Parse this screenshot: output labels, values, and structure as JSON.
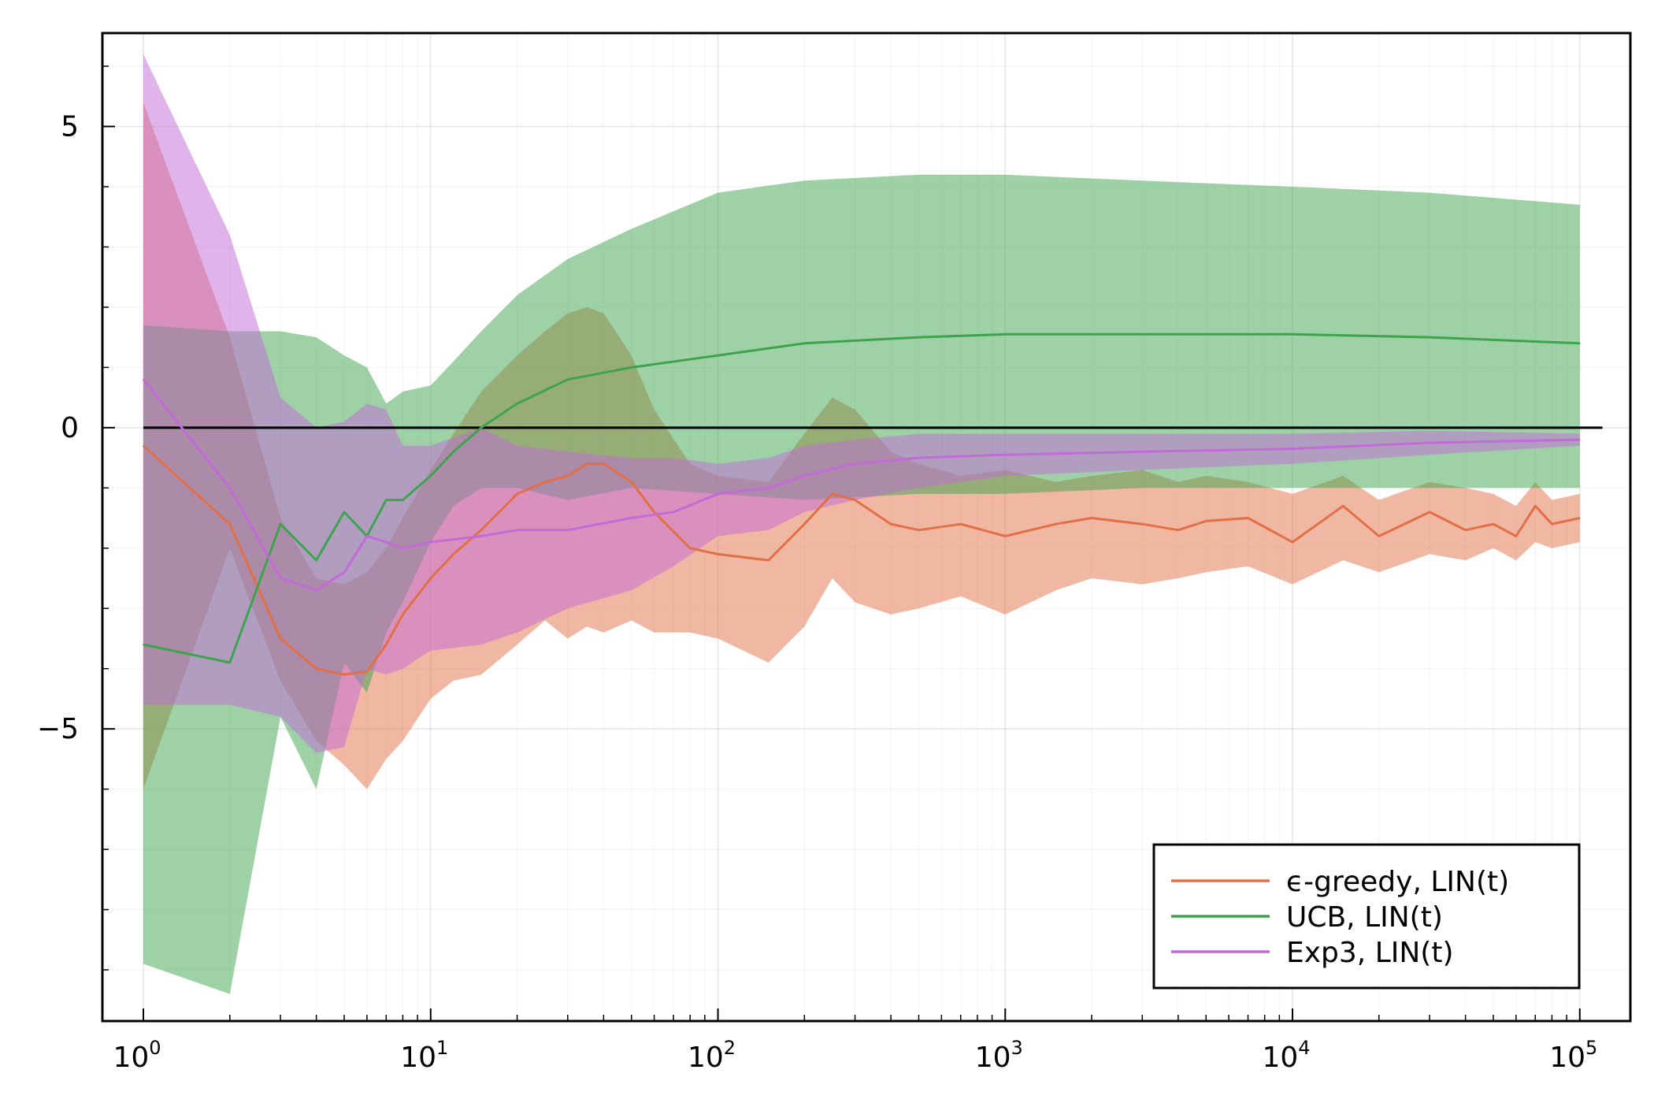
{
  "chart_data": {
    "type": "line",
    "title": "",
    "xlabel": "",
    "ylabel": "",
    "xscale": "log10",
    "xlim": [
      0.72,
      150000
    ],
    "ylim": [
      -9.85,
      6.55
    ],
    "x_ticks": [
      {
        "base": "10",
        "exp": "0",
        "value": 1
      },
      {
        "base": "10",
        "exp": "1",
        "value": 10
      },
      {
        "base": "10",
        "exp": "2",
        "value": 100
      },
      {
        "base": "10",
        "exp": "3",
        "value": 1000
      },
      {
        "base": "10",
        "exp": "4",
        "value": 10000
      },
      {
        "base": "10",
        "exp": "5",
        "value": 100000
      }
    ],
    "y_ticks": [
      {
        "label": "5",
        "value": 5
      },
      {
        "label": "0",
        "value": 0
      },
      {
        "label": "−5",
        "value": -5
      }
    ],
    "grid": true,
    "minor_grid": true,
    "legend_position": "bottom-right",
    "reference_line": {
      "y": 0,
      "x_range": [
        1,
        120000
      ],
      "color": "#000000"
    },
    "series": [
      {
        "name": "ϵ-greedy, LIN(t)",
        "color": "#e26f46",
        "band_opacity": 0.5,
        "points": [
          [
            1,
            -0.3,
            -6.0,
            5.4
          ],
          [
            2,
            -1.6,
            -2.0,
            1.5
          ],
          [
            3,
            -3.5,
            -4.2,
            -1.5
          ],
          [
            4,
            -4.0,
            -5.2,
            -2.5
          ],
          [
            5,
            -4.1,
            -5.6,
            -2.6
          ],
          [
            6,
            -4.05,
            -6.0,
            -2.4
          ],
          [
            7,
            -3.6,
            -5.5,
            -2.0
          ],
          [
            8,
            -3.1,
            -5.2,
            -1.5
          ],
          [
            10,
            -2.5,
            -4.5,
            -0.7
          ],
          [
            12,
            -2.1,
            -4.2,
            -0.1
          ],
          [
            15,
            -1.7,
            -4.1,
            0.6
          ],
          [
            20,
            -1.1,
            -3.6,
            1.2
          ],
          [
            25,
            -0.9,
            -3.2,
            1.6
          ],
          [
            30,
            -0.8,
            -3.5,
            1.9
          ],
          [
            35,
            -0.6,
            -3.3,
            2.0
          ],
          [
            40,
            -0.6,
            -3.4,
            1.9
          ],
          [
            50,
            -0.9,
            -3.2,
            1.2
          ],
          [
            60,
            -1.4,
            -3.4,
            0.3
          ],
          [
            80,
            -2.0,
            -3.4,
            -0.6
          ],
          [
            100,
            -2.1,
            -3.5,
            -0.8
          ],
          [
            150,
            -2.2,
            -3.9,
            -0.9
          ],
          [
            200,
            -1.6,
            -3.3,
            -0.1
          ],
          [
            250,
            -1.1,
            -2.5,
            0.5
          ],
          [
            300,
            -1.2,
            -2.9,
            0.3
          ],
          [
            400,
            -1.6,
            -3.1,
            -0.4
          ],
          [
            500,
            -1.7,
            -3.0,
            -0.6
          ],
          [
            700,
            -1.6,
            -2.8,
            -0.8
          ],
          [
            1000,
            -1.8,
            -3.1,
            -0.7
          ],
          [
            1500,
            -1.6,
            -2.7,
            -0.9
          ],
          [
            2000,
            -1.5,
            -2.5,
            -0.8
          ],
          [
            3000,
            -1.6,
            -2.6,
            -0.7
          ],
          [
            4000,
            -1.7,
            -2.5,
            -0.9
          ],
          [
            5000,
            -1.55,
            -2.4,
            -0.8
          ],
          [
            7000,
            -1.5,
            -2.3,
            -0.9
          ],
          [
            10000,
            -1.9,
            -2.6,
            -1.1
          ],
          [
            15000,
            -1.3,
            -2.2,
            -0.8
          ],
          [
            20000,
            -1.8,
            -2.4,
            -1.2
          ],
          [
            30000,
            -1.4,
            -2.1,
            -0.9
          ],
          [
            40000,
            -1.7,
            -2.2,
            -1.0
          ],
          [
            50000,
            -1.6,
            -2.0,
            -1.1
          ],
          [
            60000,
            -1.8,
            -2.2,
            -1.3
          ],
          [
            70000,
            -1.3,
            -1.9,
            -0.9
          ],
          [
            80000,
            -1.6,
            -2.0,
            -1.2
          ],
          [
            100000,
            -1.5,
            -1.9,
            -1.1
          ]
        ]
      },
      {
        "name": "UCB, LIN(t)",
        "color": "#3da44d",
        "band_opacity": 0.5,
        "points": [
          [
            1,
            -3.6,
            -8.9,
            1.7
          ],
          [
            2,
            -3.9,
            -9.4,
            1.6
          ],
          [
            3,
            -1.6,
            -4.8,
            1.6
          ],
          [
            4,
            -2.2,
            -6.0,
            1.5
          ],
          [
            5,
            -1.4,
            -3.9,
            1.2
          ],
          [
            6,
            -1.8,
            -4.4,
            1.0
          ],
          [
            7,
            -1.2,
            -3.4,
            0.4
          ],
          [
            8,
            -1.2,
            -2.9,
            0.6
          ],
          [
            10,
            -0.8,
            -1.9,
            0.7
          ],
          [
            12,
            -0.4,
            -1.3,
            1.1
          ],
          [
            15,
            0.0,
            -1.0,
            1.6
          ],
          [
            20,
            0.4,
            -1.0,
            2.2
          ],
          [
            30,
            0.8,
            -1.2,
            2.8
          ],
          [
            50,
            1.0,
            -1.0,
            3.3
          ],
          [
            100,
            1.2,
            -1.1,
            3.9
          ],
          [
            200,
            1.4,
            -1.2,
            4.1
          ],
          [
            500,
            1.5,
            -1.1,
            4.2
          ],
          [
            1000,
            1.55,
            -1.1,
            4.2
          ],
          [
            3000,
            1.55,
            -1.0,
            4.1
          ],
          [
            10000,
            1.55,
            -1.0,
            4.0
          ],
          [
            30000,
            1.5,
            -1.0,
            3.9
          ],
          [
            100000,
            1.4,
            -1.0,
            3.7
          ]
        ]
      },
      {
        "name": "Exp3, LIN(t)",
        "color": "#c26ad8",
        "band_opacity": 0.5,
        "points": [
          [
            1,
            0.8,
            -4.6,
            6.2
          ],
          [
            2,
            -1.0,
            -4.6,
            3.2
          ],
          [
            3,
            -2.5,
            -4.8,
            0.5
          ],
          [
            4,
            -2.7,
            -5.4,
            0.0
          ],
          [
            5,
            -2.4,
            -5.3,
            0.1
          ],
          [
            6,
            -1.8,
            -4.0,
            0.4
          ],
          [
            7,
            -1.9,
            -4.1,
            0.3
          ],
          [
            8,
            -2.0,
            -4.0,
            -0.3
          ],
          [
            10,
            -1.9,
            -3.7,
            -0.3
          ],
          [
            15,
            -1.8,
            -3.6,
            0.0
          ],
          [
            20,
            -1.7,
            -3.4,
            -0.3
          ],
          [
            30,
            -1.7,
            -3.0,
            -0.4
          ],
          [
            50,
            -1.5,
            -2.7,
            -0.5
          ],
          [
            70,
            -1.4,
            -2.3,
            -0.5
          ],
          [
            100,
            -1.1,
            -1.8,
            -0.6
          ],
          [
            150,
            -1.0,
            -1.7,
            -0.5
          ],
          [
            200,
            -0.8,
            -1.4,
            -0.3
          ],
          [
            300,
            -0.6,
            -1.2,
            -0.2
          ],
          [
            500,
            -0.5,
            -1.0,
            -0.1
          ],
          [
            1000,
            -0.45,
            -0.8,
            -0.1
          ],
          [
            3000,
            -0.4,
            -0.7,
            -0.1
          ],
          [
            10000,
            -0.35,
            -0.6,
            -0.1
          ],
          [
            30000,
            -0.25,
            -0.45,
            -0.05
          ],
          [
            100000,
            -0.2,
            -0.3,
            -0.1
          ]
        ]
      }
    ]
  }
}
